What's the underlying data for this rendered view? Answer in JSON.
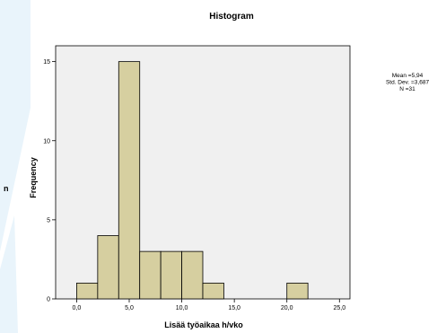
{
  "chart_data": {
    "type": "bar",
    "title": "Histogram",
    "xlabel": "Lisää työaikaa h/vko",
    "ylabel": "Frequency",
    "xlim": [
      -2,
      26
    ],
    "ylim": [
      0,
      16
    ],
    "x_ticks": [
      {
        "value": 0,
        "label": "0,0"
      },
      {
        "value": 5,
        "label": "5,0"
      },
      {
        "value": 10,
        "label": "10,0"
      },
      {
        "value": 15,
        "label": "15,0"
      },
      {
        "value": 20,
        "label": "20,0"
      },
      {
        "value": 25,
        "label": "25,0"
      }
    ],
    "y_ticks": [
      {
        "value": 0,
        "label": "0"
      },
      {
        "value": 5,
        "label": "5"
      },
      {
        "value": 10,
        "label": "10"
      },
      {
        "value": 15,
        "label": "15"
      }
    ],
    "bins": [
      {
        "start": 0,
        "end": 2,
        "count": 1
      },
      {
        "start": 2,
        "end": 4,
        "count": 4
      },
      {
        "start": 4,
        "end": 6,
        "count": 15
      },
      {
        "start": 6,
        "end": 8,
        "count": 3
      },
      {
        "start": 8,
        "end": 10,
        "count": 3
      },
      {
        "start": 10,
        "end": 12,
        "count": 3
      },
      {
        "start": 12,
        "end": 14,
        "count": 1
      },
      {
        "start": 20,
        "end": 22,
        "count": 1
      }
    ],
    "stats": [
      "Mean =5,94",
      "Std. Dev. =3,687",
      "N =31"
    ],
    "grid": false,
    "bar_color": "#d6cfa0",
    "plot_background": "#f0f0f0"
  },
  "side_letter": "n",
  "decor_color": "#e9f4fb"
}
